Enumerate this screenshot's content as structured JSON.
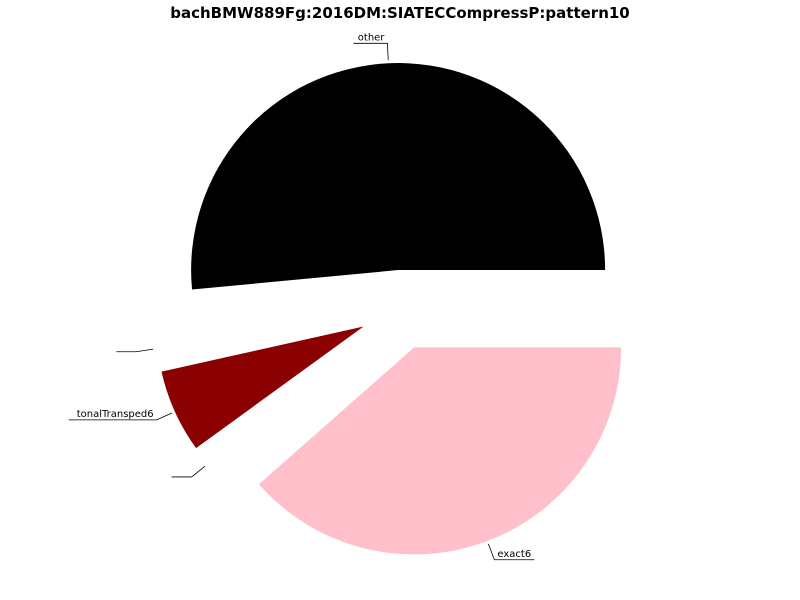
{
  "chart_data": {
    "type": "pie",
    "title": "bachBMW889Fg:2016DM:SIATECCompressP:pattern10",
    "start_angle_deg": 0,
    "direction": "counterclockwise",
    "slices": [
      {
        "label": "other",
        "value": 51.5,
        "color": "#000000",
        "exploded": true
      },
      {
        "label": "",
        "value": 2.0,
        "color": "#ffffff",
        "exploded": true
      },
      {
        "label": "tonalTransped6",
        "value": 6.5,
        "color": "#8b0000",
        "exploded": true
      },
      {
        "label": "",
        "value": 1.5,
        "color": "#ffffff",
        "exploded": true
      },
      {
        "label": "exact6",
        "value": 38.5,
        "color": "#ffc0cb",
        "exploded": true
      },
      {
        "label": "",
        "value": 0.0,
        "color": "#ffffff",
        "exploded": false
      }
    ]
  }
}
